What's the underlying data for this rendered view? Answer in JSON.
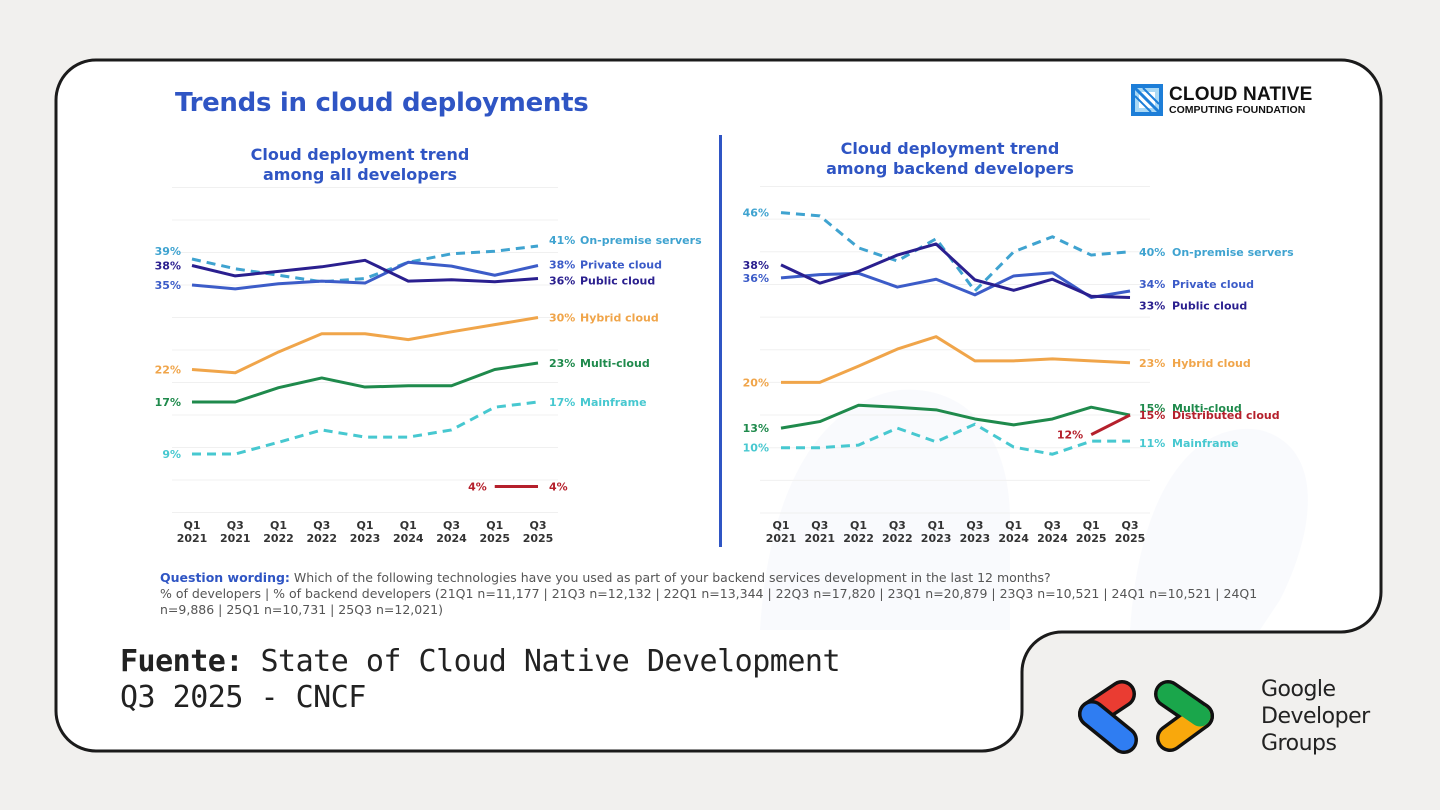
{
  "header": {
    "title": "Trends in cloud deployments",
    "logo": {
      "line1": "CLOUD NATIVE",
      "line2": "COMPUTING FOUNDATION"
    }
  },
  "colors": {
    "title_blue": "#2f55c4",
    "on_premise": "#3fa3d0",
    "private_cloud": "#3c5cc8",
    "public_cloud": "#2a1f8f",
    "hybrid_cloud": "#f0a54a",
    "multi_cloud": "#1f8a4c",
    "mainframe": "#47c8d0",
    "distributed_cloud": "#b5202c"
  },
  "chart_data": [
    {
      "type": "line",
      "title": "Cloud deployment trend among all developers",
      "title_lines": [
        "Cloud deployment trend",
        "among all developers"
      ],
      "xlabel": "",
      "ylabel": "% of developers",
      "ylim": [
        0,
        50
      ],
      "grid": true,
      "categories": [
        [
          "Q1",
          "2021"
        ],
        [
          "Q3",
          "2021"
        ],
        [
          "Q1",
          "2022"
        ],
        [
          "Q3",
          "2022"
        ],
        [
          "Q1",
          "2023"
        ],
        [
          "Q1",
          "2024"
        ],
        [
          "Q3",
          "2024"
        ],
        [
          "Q1",
          "2025"
        ],
        [
          "Q3",
          "2025"
        ]
      ],
      "series": [
        {
          "name": "On-premise servers",
          "key": "on_premise",
          "dashed": true,
          "values": [
            39,
            37.5,
            36.5,
            35.5,
            36,
            38.5,
            39.8,
            40.2,
            41
          ],
          "start_label": "39%",
          "end_label": "41%"
        },
        {
          "name": "Private cloud",
          "key": "private_cloud",
          "dashed": false,
          "values": [
            35,
            34.4,
            35.2,
            35.6,
            35.3,
            38.5,
            37.9,
            36.5,
            38
          ],
          "start_label": "35%",
          "end_label": "38%"
        },
        {
          "name": "Public cloud",
          "key": "public_cloud",
          "dashed": false,
          "values": [
            38,
            36.4,
            37.1,
            37.8,
            38.8,
            35.6,
            35.8,
            35.5,
            36
          ],
          "start_label": "38%",
          "end_label": "36%"
        },
        {
          "name": "Hybrid cloud",
          "key": "hybrid_cloud",
          "dashed": false,
          "values": [
            22,
            21.5,
            24.7,
            27.5,
            27.5,
            26.6,
            27.8,
            28.9,
            30
          ],
          "start_label": "22%",
          "end_label": "30%"
        },
        {
          "name": "Multi-cloud",
          "key": "multi_cloud",
          "dashed": false,
          "values": [
            17,
            17,
            19.2,
            20.7,
            19.3,
            19.5,
            19.5,
            22,
            23
          ],
          "start_label": "17%",
          "end_label": "23%"
        },
        {
          "name": "Mainframe",
          "key": "mainframe",
          "dashed": true,
          "values": [
            9,
            9,
            10.8,
            12.7,
            11.6,
            11.6,
            12.7,
            16.2,
            17
          ],
          "start_label": "9%",
          "end_label": "17%"
        },
        {
          "name": "",
          "key": "distributed_cloud",
          "dashed": false,
          "values": [
            null,
            null,
            null,
            null,
            null,
            null,
            null,
            4,
            4
          ],
          "start_label": "4%",
          "end_label": "4%"
        }
      ]
    },
    {
      "type": "line",
      "title": "Cloud deployment trend among backend developers",
      "title_lines": [
        "Cloud deployment trend",
        "among backend developers"
      ],
      "xlabel": "",
      "ylabel": "% of backend developers",
      "ylim": [
        0,
        50
      ],
      "grid": true,
      "categories": [
        [
          "Q1",
          "2021"
        ],
        [
          "Q3",
          "2021"
        ],
        [
          "Q1",
          "2022"
        ],
        [
          "Q3",
          "2022"
        ],
        [
          "Q1",
          "2023"
        ],
        [
          "Q3",
          "2023"
        ],
        [
          "Q1",
          "2024"
        ],
        [
          "Q3",
          "2024"
        ],
        [
          "Q1",
          "2025"
        ],
        [
          "Q3",
          "2025"
        ]
      ],
      "series": [
        {
          "name": "On-premise servers",
          "key": "on_premise",
          "dashed": true,
          "values": [
            46,
            45.5,
            40.6,
            38.6,
            42,
            34,
            40,
            42.3,
            39.5,
            40
          ],
          "start_label": "46%",
          "end_label": "40%"
        },
        {
          "name": "Private cloud",
          "key": "private_cloud",
          "dashed": false,
          "values": [
            36,
            36.5,
            36.7,
            34.6,
            35.8,
            33.4,
            36.3,
            36.8,
            33,
            34
          ],
          "start_label": "36%",
          "end_label": "34%"
        },
        {
          "name": "Public cloud",
          "key": "public_cloud",
          "dashed": false,
          "values": [
            38,
            35.2,
            37,
            39.5,
            41.2,
            35.7,
            34.1,
            35.8,
            33.2,
            33
          ],
          "start_label": "38%",
          "end_label": "33%"
        },
        {
          "name": "Hybrid cloud",
          "key": "hybrid_cloud",
          "dashed": false,
          "values": [
            20,
            20,
            22.5,
            25.1,
            27,
            23.3,
            23.3,
            23.6,
            23.3,
            23
          ],
          "start_label": "20%",
          "end_label": "23%"
        },
        {
          "name": "Multi-cloud",
          "key": "multi_cloud",
          "dashed": false,
          "values": [
            13,
            14,
            16.5,
            16.2,
            15.8,
            14.4,
            13.5,
            14.4,
            16.2,
            15
          ],
          "start_label": "13%",
          "end_label": "15%"
        },
        {
          "name": "Distributed cloud",
          "key": "distributed_cloud",
          "dashed": false,
          "values": [
            null,
            null,
            null,
            null,
            null,
            null,
            null,
            null,
            12,
            15
          ],
          "start_label": "12%",
          "end_label": "15%"
        },
        {
          "name": "Mainframe",
          "key": "mainframe",
          "dashed": true,
          "values": [
            10,
            10,
            10.4,
            13,
            10.9,
            13.6,
            10.1,
            9,
            11,
            11
          ],
          "start_label": "10%",
          "end_label": "11%"
        }
      ]
    }
  ],
  "question": {
    "label": "Question wording:",
    "text": " Which of the following technologies have you used as part of your backend services development in the last 12 months?",
    "sample": "% of developers | % of backend developers (21Q1 n=11,177 | 21Q3 n=12,132 | 22Q1 n=13,344 | 22Q3 n=17,820 | 23Q1 n=20,879 | 23Q3 n=10,521 | 24Q1 n=10,521 | 24Q1 n=9,886 | 25Q1 n=10,731 | 25Q3 n=12,021)"
  },
  "source": {
    "label": "Fuente:",
    "line1": " State of Cloud Native Development",
    "line2": "Q3 2025 - CNCF"
  },
  "footer_logo": {
    "lines": [
      "Google",
      "Developer",
      "Groups"
    ],
    "colors": {
      "red": "#ea3c32",
      "blue": "#2f7df2",
      "green": "#1aa64b",
      "yellow": "#f9a80c"
    }
  }
}
